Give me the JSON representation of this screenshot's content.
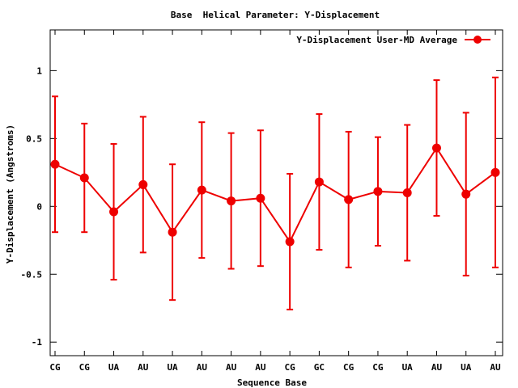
{
  "chart_data": {
    "type": "line",
    "title": "Base  Helical Parameter: Y-Displacement",
    "xlabel": "Sequence Base",
    "ylabel": "Y-Displacement (Angstroms)",
    "ylim": [
      -1.1,
      1.3
    ],
    "yticks": [
      -1,
      -0.5,
      0,
      0.5,
      1
    ],
    "ytick_labels": [
      "-1",
      "-0.5",
      "0",
      "0.5",
      "1"
    ],
    "categories": [
      "CG",
      "CG",
      "UA",
      "AU",
      "UA",
      "AU",
      "AU",
      "AU",
      "CG",
      "GC",
      "CG",
      "CG",
      "UA",
      "AU",
      "UA",
      "AU"
    ],
    "series": [
      {
        "name": "Y-Displacement User-MD Average",
        "color": "#ee0000",
        "values": [
          0.31,
          0.21,
          -0.04,
          0.16,
          -0.19,
          0.12,
          0.04,
          0.06,
          -0.26,
          0.18,
          0.05,
          0.11,
          0.1,
          0.43,
          0.09,
          0.25
        ],
        "error": [
          0.5,
          0.4,
          0.5,
          0.5,
          0.5,
          0.5,
          0.5,
          0.5,
          0.5,
          0.5,
          0.5,
          0.4,
          0.5,
          0.5,
          0.6,
          0.7
        ]
      }
    ],
    "legend": "top-right",
    "grid": false
  }
}
